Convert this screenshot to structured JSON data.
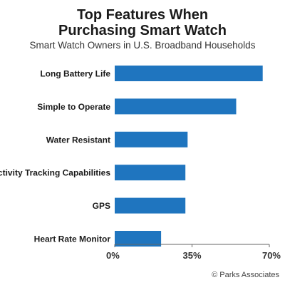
{
  "chart_data": {
    "type": "bar",
    "orientation": "horizontal",
    "title_lines": [
      "Top Features When",
      "Purchasing Smart Watch"
    ],
    "subtitle": "Smart Watch Owners in U.S. Broadband Households",
    "categories": [
      "Long Battery Life",
      "Simple to Operate",
      "Water Resistant",
      "Activity Tracking Capabilities",
      "GPS",
      "Heart Rate Monitor"
    ],
    "values": [
      67,
      55,
      33,
      32,
      32,
      21
    ],
    "xlim": [
      0,
      70
    ],
    "xticks": [
      "0%",
      "35%",
      "70%"
    ],
    "xtick_values": [
      0,
      35,
      70
    ],
    "bar_color": "#1f75bf",
    "grid": false,
    "legend": "none"
  },
  "footer": "© Parks Associates"
}
